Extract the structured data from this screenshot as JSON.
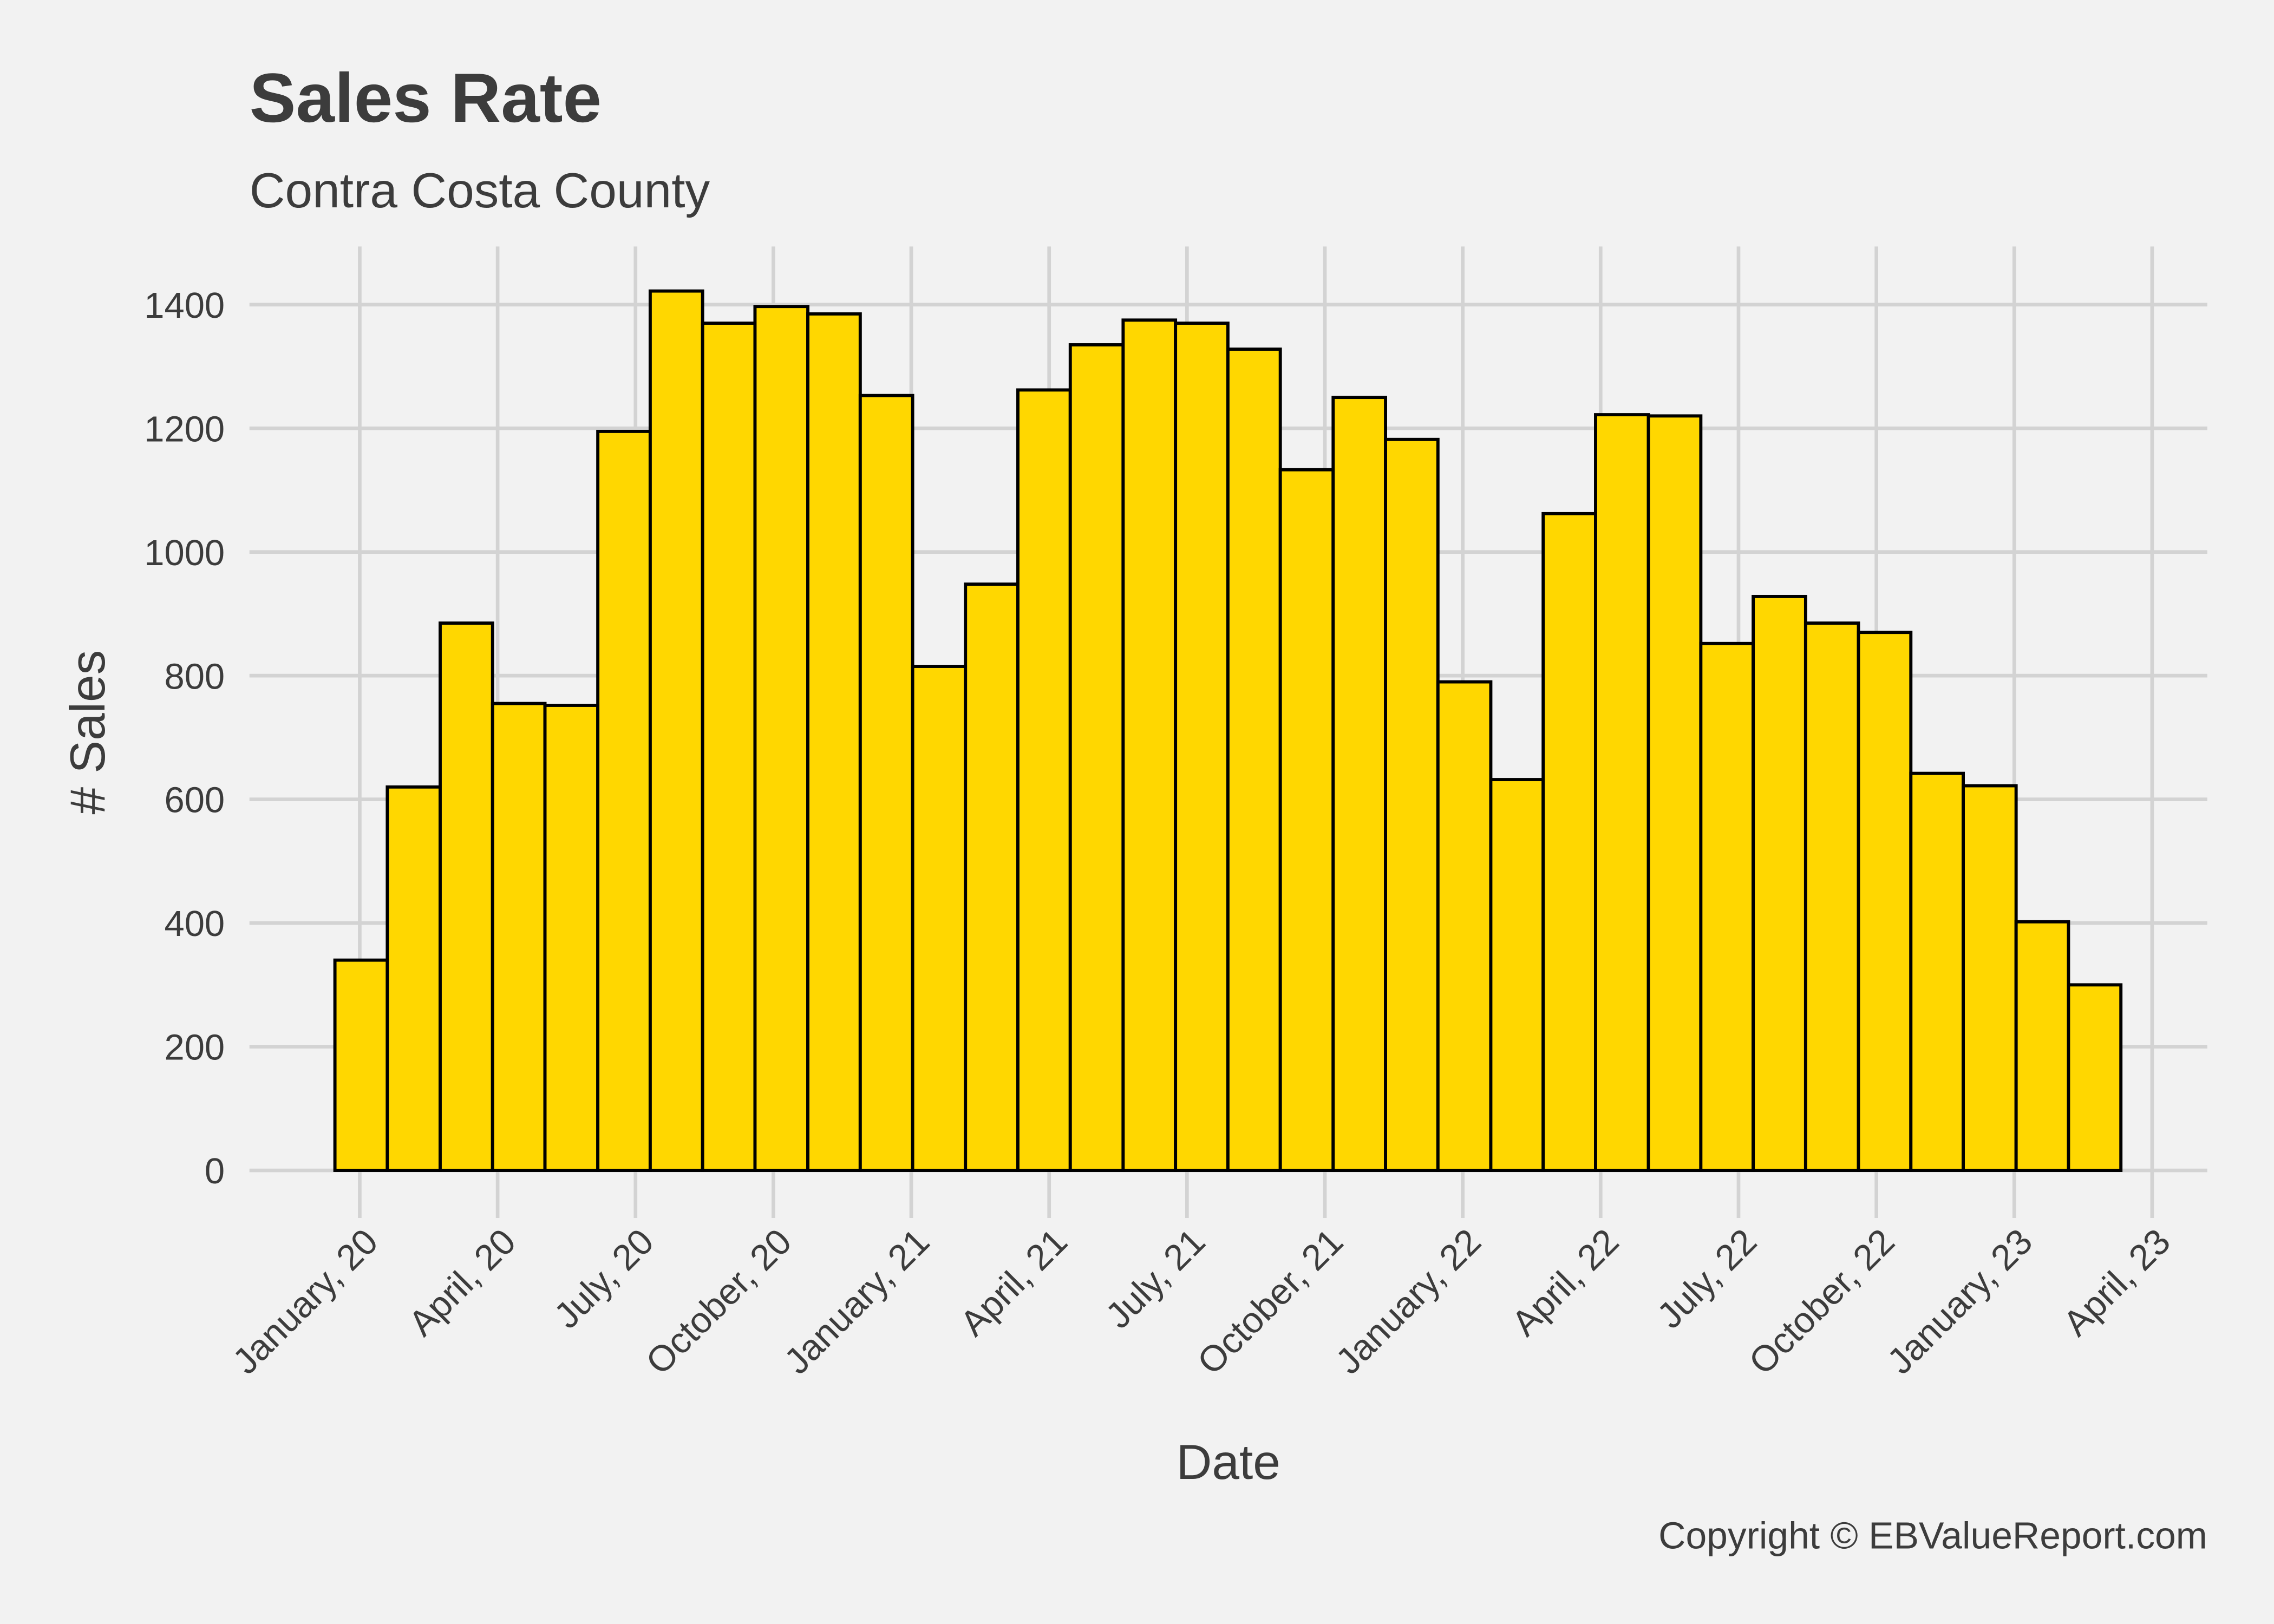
{
  "chart_data": {
    "type": "histogram",
    "title": "Sales Rate",
    "subtitle": "Contra Costa County",
    "x_label": "Date",
    "y_label": "# Sales",
    "caption": "Copyright  © EBValueReport.com",
    "color": "#ffd700",
    "edge_color": "#000000",
    "grid": true,
    "bins": [
      -0.54,
      0.6,
      1.75,
      2.89,
      4.03,
      5.18,
      6.32,
      7.46,
      8.6,
      9.75,
      10.89,
      12.03,
      13.18,
      14.32,
      15.46,
      16.61,
      17.75,
      18.89,
      20.03,
      21.18,
      22.32,
      23.46,
      24.61,
      25.75,
      26.89,
      28.04,
      29.18,
      30.32,
      31.46,
      32.61,
      33.75,
      34.89,
      36.04,
      37.18,
      38.32
    ],
    "values": [
      340,
      620,
      885,
      755,
      752,
      1195,
      1422,
      1370,
      1397,
      1385,
      1253,
      815,
      948,
      1262,
      1335,
      1375,
      1370,
      1328,
      1133,
      1250,
      1182,
      790,
      632,
      1062,
      1222,
      1220,
      852,
      928,
      885,
      870,
      642,
      622,
      402,
      300
    ],
    "xlim": [
      -2.4,
      40.2
    ],
    "xticks": [
      {
        "value": 0,
        "label": "January, 20"
      },
      {
        "value": 3,
        "label": "April, 20"
      },
      {
        "value": 6,
        "label": "July, 20"
      },
      {
        "value": 9,
        "label": "October, 20"
      },
      {
        "value": 12,
        "label": "January, 21"
      },
      {
        "value": 15,
        "label": "April, 21"
      },
      {
        "value": 18,
        "label": "July, 21"
      },
      {
        "value": 21,
        "label": "October, 21"
      },
      {
        "value": 24,
        "label": "January, 22"
      },
      {
        "value": 27,
        "label": "April, 22"
      },
      {
        "value": 30,
        "label": "July, 22"
      },
      {
        "value": 33,
        "label": "October, 22"
      },
      {
        "value": 36,
        "label": "January, 23"
      },
      {
        "value": 39,
        "label": "April, 23"
      }
    ],
    "ylim": [
      -77,
      1494
    ],
    "yticks": [
      0,
      200,
      400,
      600,
      800,
      1000,
      1200,
      1400
    ]
  }
}
